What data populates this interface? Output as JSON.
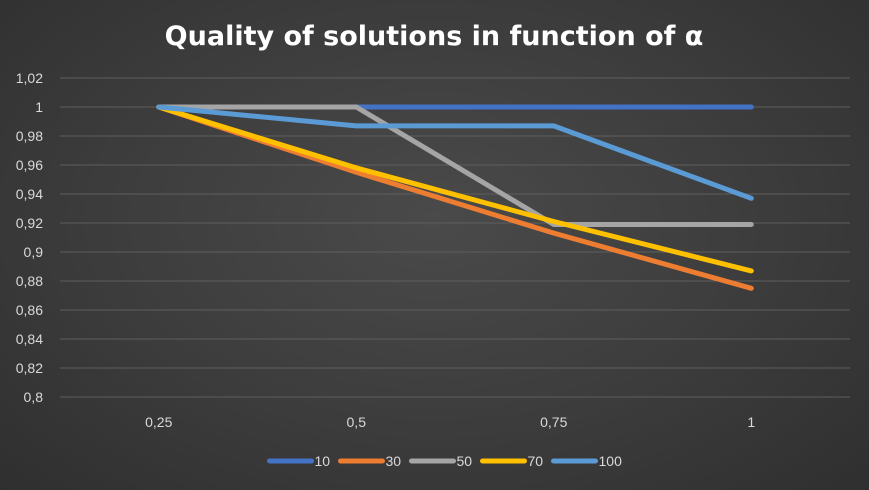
{
  "chart_data": {
    "type": "line",
    "title": "Quality of solutions in function of α",
    "xlabel": "",
    "ylabel": "",
    "categories": [
      "0,25",
      "0,5",
      "0,75",
      "1"
    ],
    "ylim": [
      0.8,
      1.02
    ],
    "y_ticks": [
      0.8,
      0.82,
      0.84,
      0.86,
      0.88,
      0.9,
      0.92,
      0.94,
      0.96,
      0.98,
      1,
      1.02
    ],
    "y_tick_labels": [
      "0,8",
      "0,82",
      "0,84",
      "0,86",
      "0,88",
      "0,9",
      "0,92",
      "0,94",
      "0,96",
      "0,98",
      "1",
      "1,02"
    ],
    "grid": true,
    "legend": "bottom",
    "series": [
      {
        "name": "10",
        "color": "#4472c4",
        "values": [
          1,
          1,
          1,
          1
        ]
      },
      {
        "name": "30",
        "color": "#ed7d31",
        "values": [
          1,
          0.955,
          0.913,
          0.875
        ]
      },
      {
        "name": "50",
        "color": "#a5a5a5",
        "values": [
          1,
          1,
          0.919,
          0.919
        ]
      },
      {
        "name": "70",
        "color": "#ffc000",
        "values": [
          1,
          0.958,
          0.921,
          0.887
        ]
      },
      {
        "name": "100",
        "color": "#5b9bd5",
        "values": [
          1,
          0.987,
          0.987,
          0.937
        ]
      }
    ]
  }
}
